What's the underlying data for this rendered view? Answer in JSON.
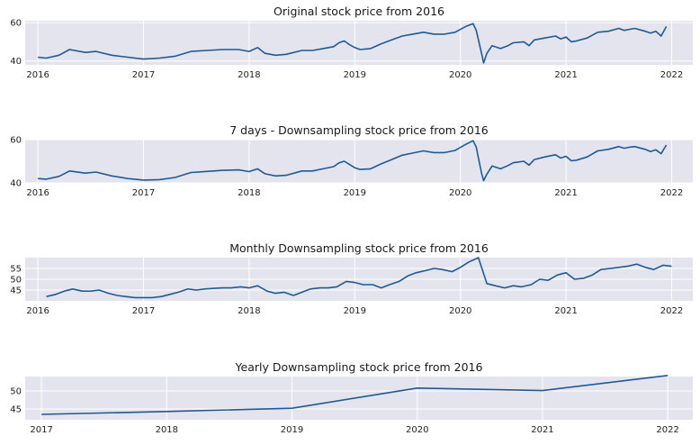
{
  "style": {
    "line_color": "#1f5a96",
    "panel_bg": "#e4e4ee",
    "grid_color": "#ffffff"
  },
  "chart_data": [
    {
      "type": "line",
      "title": "Original stock price from 2016",
      "xlabel": "",
      "ylabel": "",
      "x_ticks": [
        "2016",
        "2017",
        "2018",
        "2019",
        "2020",
        "2021",
        "2022"
      ],
      "y_ticks": [
        40,
        60
      ],
      "xlim": [
        2015.88,
        2022.2
      ],
      "ylim": [
        38,
        61
      ],
      "grid": true,
      "legend": "none",
      "series": [
        {
          "x": [
            2016.0,
            2016.08,
            2016.2,
            2016.3,
            2016.45,
            2016.55,
            2016.7,
            2016.85,
            2017.0,
            2017.15,
            2017.3,
            2017.45,
            2017.6,
            2017.75,
            2017.9,
            2018.0,
            2018.08,
            2018.15,
            2018.25,
            2018.35,
            2018.5,
            2018.6,
            2018.7,
            2018.8,
            2018.85,
            2018.9,
            2018.95,
            2019.0,
            2019.05,
            2019.15,
            2019.25,
            2019.35,
            2019.45,
            2019.55,
            2019.65,
            2019.75,
            2019.85,
            2019.95,
            2020.05,
            2020.12,
            2020.15,
            2020.2,
            2020.22,
            2020.25,
            2020.3,
            2020.38,
            2020.45,
            2020.5,
            2020.6,
            2020.65,
            2020.7,
            2020.8,
            2020.9,
            2020.95,
            2021.0,
            2021.05,
            2021.1,
            2021.2,
            2021.3,
            2021.4,
            2021.5,
            2021.55,
            2021.6,
            2021.65,
            2021.75,
            2021.8,
            2021.85,
            2021.9,
            2021.95
          ],
          "y": [
            42,
            41.5,
            43,
            46,
            44.5,
            45,
            43,
            42,
            41,
            41.5,
            42.5,
            45,
            45.5,
            46,
            46,
            45,
            47,
            44,
            43,
            43.5,
            45.5,
            45.5,
            46.5,
            47.5,
            49.5,
            50.5,
            48.5,
            47,
            46,
            46.5,
            49,
            51,
            53,
            54,
            55,
            54,
            54,
            55,
            58,
            59.5,
            56,
            44,
            39,
            44,
            48,
            46.5,
            48,
            49.5,
            50,
            48,
            51,
            52,
            53,
            51.5,
            52.5,
            50,
            50.5,
            52,
            55,
            55.5,
            57,
            56,
            56.5,
            57,
            55.5,
            54.5,
            55.5,
            53,
            58
          ]
        }
      ]
    },
    {
      "type": "line",
      "title": "7 days - Downsampling stock price from 2016",
      "xlabel": "",
      "ylabel": "",
      "x_ticks": [
        "2016",
        "2017",
        "2018",
        "2019",
        "2020",
        "2021",
        "2022"
      ],
      "y_ticks": [
        40,
        60
      ],
      "xlim": [
        2015.88,
        2022.2
      ],
      "ylim": [
        40,
        60
      ],
      "grid": true,
      "legend": "none",
      "series": [
        {
          "x": [
            2016.0,
            2016.08,
            2016.2,
            2016.3,
            2016.45,
            2016.55,
            2016.7,
            2016.85,
            2017.0,
            2017.15,
            2017.3,
            2017.45,
            2017.6,
            2017.75,
            2017.9,
            2018.0,
            2018.08,
            2018.15,
            2018.25,
            2018.35,
            2018.5,
            2018.6,
            2018.7,
            2018.8,
            2018.85,
            2018.9,
            2018.95,
            2019.0,
            2019.05,
            2019.15,
            2019.25,
            2019.35,
            2019.45,
            2019.55,
            2019.65,
            2019.75,
            2019.85,
            2019.95,
            2020.05,
            2020.12,
            2020.15,
            2020.2,
            2020.22,
            2020.25,
            2020.3,
            2020.38,
            2020.45,
            2020.5,
            2020.6,
            2020.65,
            2020.7,
            2020.8,
            2020.9,
            2020.95,
            2021.0,
            2021.05,
            2021.1,
            2021.2,
            2021.3,
            2021.4,
            2021.5,
            2021.55,
            2021.6,
            2021.65,
            2021.75,
            2021.8,
            2021.85,
            2021.9,
            2021.95
          ],
          "y": [
            42,
            41.7,
            43,
            45.5,
            44.5,
            45,
            43.2,
            42,
            41.3,
            41.5,
            42.5,
            44.8,
            45.3,
            45.8,
            46,
            45.2,
            46.5,
            44.2,
            43.2,
            43.5,
            45.5,
            45.5,
            46.5,
            47.5,
            49.2,
            50,
            48.5,
            47,
            46.2,
            46.5,
            48.8,
            50.8,
            52.8,
            53.8,
            54.8,
            54,
            54,
            55,
            57.8,
            59.5,
            56.5,
            44.5,
            41,
            44,
            47.8,
            46.5,
            48,
            49.3,
            50,
            48.2,
            50.8,
            52,
            53,
            51.5,
            52.3,
            50.2,
            50.5,
            52,
            54.8,
            55.5,
            56.8,
            56,
            56.5,
            56.8,
            55.5,
            54.5,
            55.3,
            53.5,
            57.5
          ]
        }
      ]
    },
    {
      "type": "line",
      "title": "Monthly Downsampling  stock price from 2016",
      "xlabel": "",
      "ylabel": "",
      "x_ticks": [
        "2016",
        "2017",
        "2018",
        "2019",
        "2020",
        "2021",
        "2022"
      ],
      "y_ticks": [
        45,
        50,
        55
      ],
      "xlim": [
        2015.88,
        2022.2
      ],
      "ylim": [
        40,
        60
      ],
      "grid": true,
      "legend": "none",
      "series": [
        {
          "x": [
            2016.08,
            2016.17,
            2016.25,
            2016.33,
            2016.42,
            2016.5,
            2016.58,
            2016.67,
            2016.75,
            2016.83,
            2016.92,
            2017.0,
            2017.08,
            2017.17,
            2017.25,
            2017.33,
            2017.42,
            2017.5,
            2017.58,
            2017.67,
            2017.75,
            2017.83,
            2017.92,
            2018.0,
            2018.08,
            2018.17,
            2018.25,
            2018.33,
            2018.42,
            2018.5,
            2018.58,
            2018.67,
            2018.75,
            2018.83,
            2018.92,
            2019.0,
            2019.08,
            2019.17,
            2019.25,
            2019.33,
            2019.42,
            2019.5,
            2019.58,
            2019.67,
            2019.75,
            2019.83,
            2019.92,
            2020.0,
            2020.08,
            2020.17,
            2020.25,
            2020.33,
            2020.42,
            2020.5,
            2020.58,
            2020.67,
            2020.75,
            2020.83,
            2020.92,
            2021.0,
            2021.08,
            2021.17,
            2021.25,
            2021.33,
            2021.42,
            2021.5,
            2021.58,
            2021.67,
            2021.75,
            2021.83,
            2021.92,
            2022.0
          ],
          "y": [
            42,
            43,
            44.5,
            45.5,
            44.5,
            44.5,
            45,
            43.5,
            42.5,
            42,
            41.5,
            41.5,
            41.5,
            42,
            43,
            44,
            45.5,
            45,
            45.5,
            45.8,
            46,
            46,
            46.5,
            46,
            47,
            44.5,
            43.5,
            44,
            42.5,
            44,
            45.5,
            46,
            46,
            46.5,
            49,
            48.5,
            47.5,
            47.5,
            46,
            47.5,
            49,
            51.5,
            53,
            54,
            55,
            54.5,
            53.5,
            55.5,
            58,
            60,
            48,
            47,
            46,
            47,
            46.5,
            47.5,
            50,
            49.5,
            52,
            53,
            50,
            50.5,
            52,
            54.5,
            55,
            55.5,
            56,
            57,
            55.5,
            54.5,
            56.5,
            56
          ]
        }
      ]
    },
    {
      "type": "line",
      "title": "Yearly Downsampling stock price from 2016",
      "xlabel": "",
      "ylabel": "",
      "x_ticks": [
        "2017",
        "2018",
        "2019",
        "2020",
        "2021",
        "2022"
      ],
      "y_ticks": [
        45,
        50
      ],
      "xlim": [
        2016.87,
        2022.2
      ],
      "ylim": [
        42,
        54
      ],
      "grid": true,
      "legend": "none",
      "series": [
        {
          "x": [
            2017.0,
            2018.0,
            2019.0,
            2020.0,
            2021.0,
            2022.0
          ],
          "y": [
            43.5,
            44.3,
            45.2,
            50.8,
            50.1,
            54.3
          ]
        }
      ]
    }
  ]
}
